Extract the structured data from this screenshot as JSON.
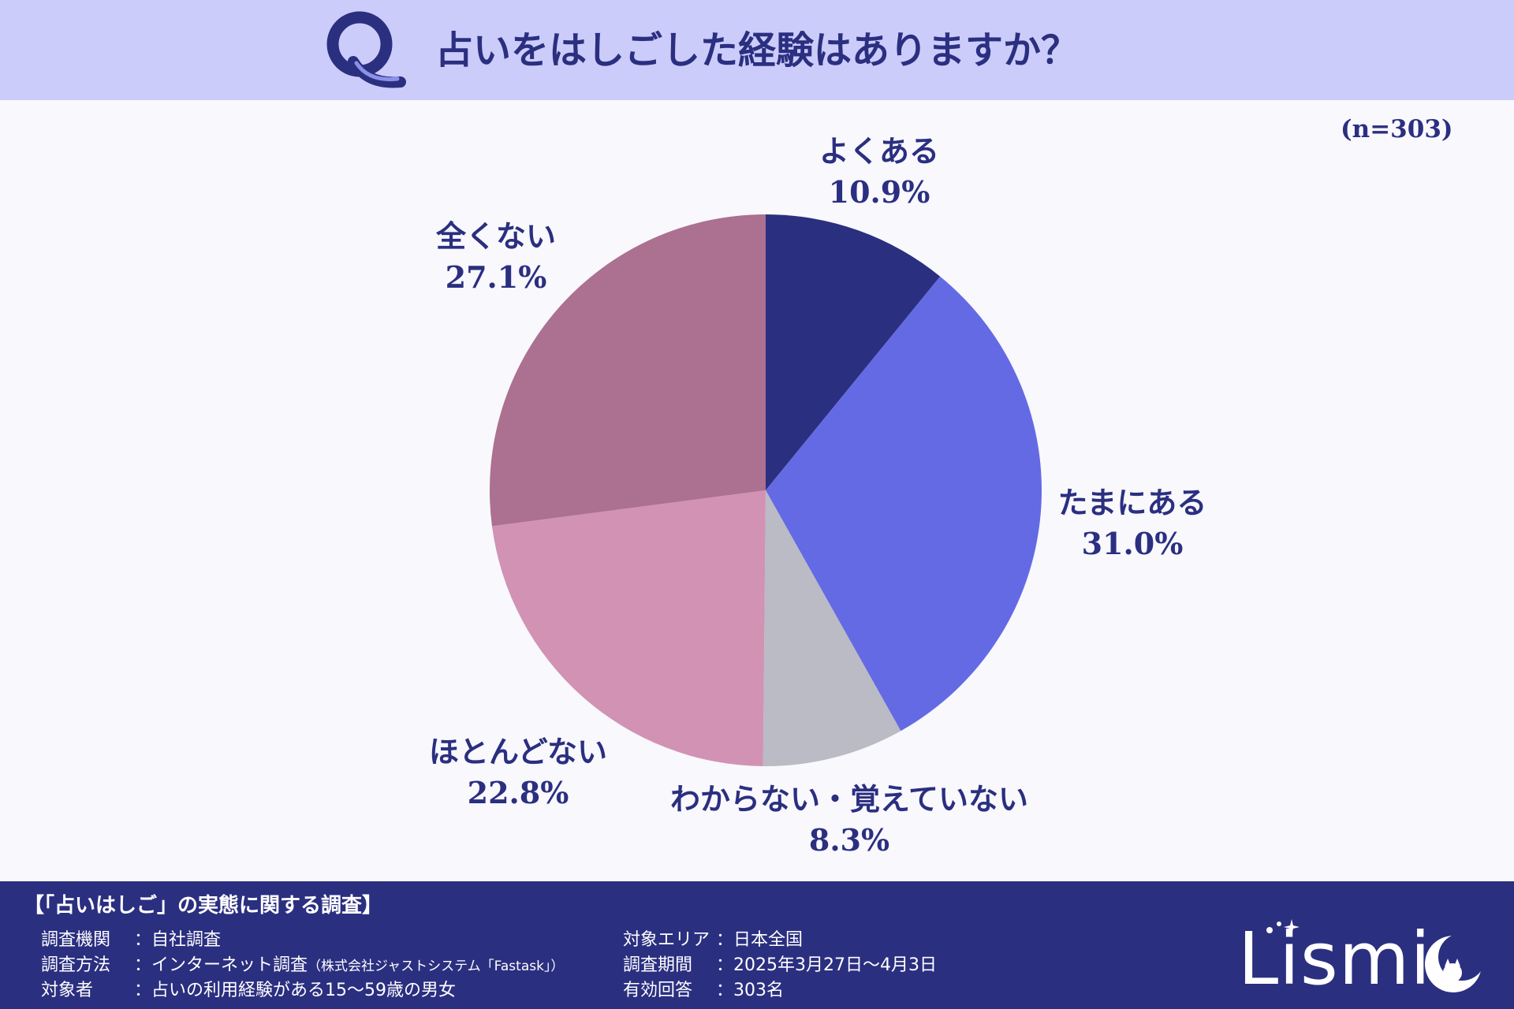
{
  "header": {
    "q_letter": "Q",
    "title": "占いをはしごした経験はありますか？"
  },
  "sample_size": "(n=303)",
  "chart_data": {
    "type": "pie",
    "title": "占いをはしごした経験はありますか？",
    "start_angle_deg": 0,
    "direction": "clockwise",
    "slices": [
      {
        "label": "よくある",
        "value": 10.9,
        "display": "10.9%",
        "color": "#2b2f80"
      },
      {
        "label": "たまにある",
        "value": 31.0,
        "display": "31.0%",
        "color": "#646ae4"
      },
      {
        "label": "わからない・覚えていない",
        "value": 8.3,
        "display": "8.3%",
        "color": "#babbc4"
      },
      {
        "label": "ほとんどない",
        "value": 22.8,
        "display": "22.8%",
        "color": "#d192b4"
      },
      {
        "label": "全くない",
        "value": 27.1,
        "display": "27.1%",
        "color": "#ac7090"
      }
    ]
  },
  "footer": {
    "title": "【「占いはしご」の実態に関する調査】",
    "rows": [
      {
        "key": "調査機関",
        "value": "自社調査",
        "note": ""
      },
      {
        "key": "調査方法",
        "value": "インターネット調査",
        "note": "（株式会社ジャストシステム「Fastask」）"
      },
      {
        "key": "対象者",
        "value": "占いの利用経験がある15～59歳の男女",
        "note": ""
      },
      {
        "key": "対象エリア",
        "value": "日本全国",
        "note": ""
      },
      {
        "key": "調査期間",
        "value": "2025年3月27日～4月3日",
        "note": ""
      },
      {
        "key": "有効回答",
        "value": "303名",
        "note": ""
      }
    ],
    "colon": "：",
    "logo_text": "Lismi"
  },
  "colors": {
    "header_bg": "#ccccfa",
    "page_bg": "#f8f8fd",
    "text": "#2b2f80",
    "footer_bg": "#2b2f80"
  }
}
